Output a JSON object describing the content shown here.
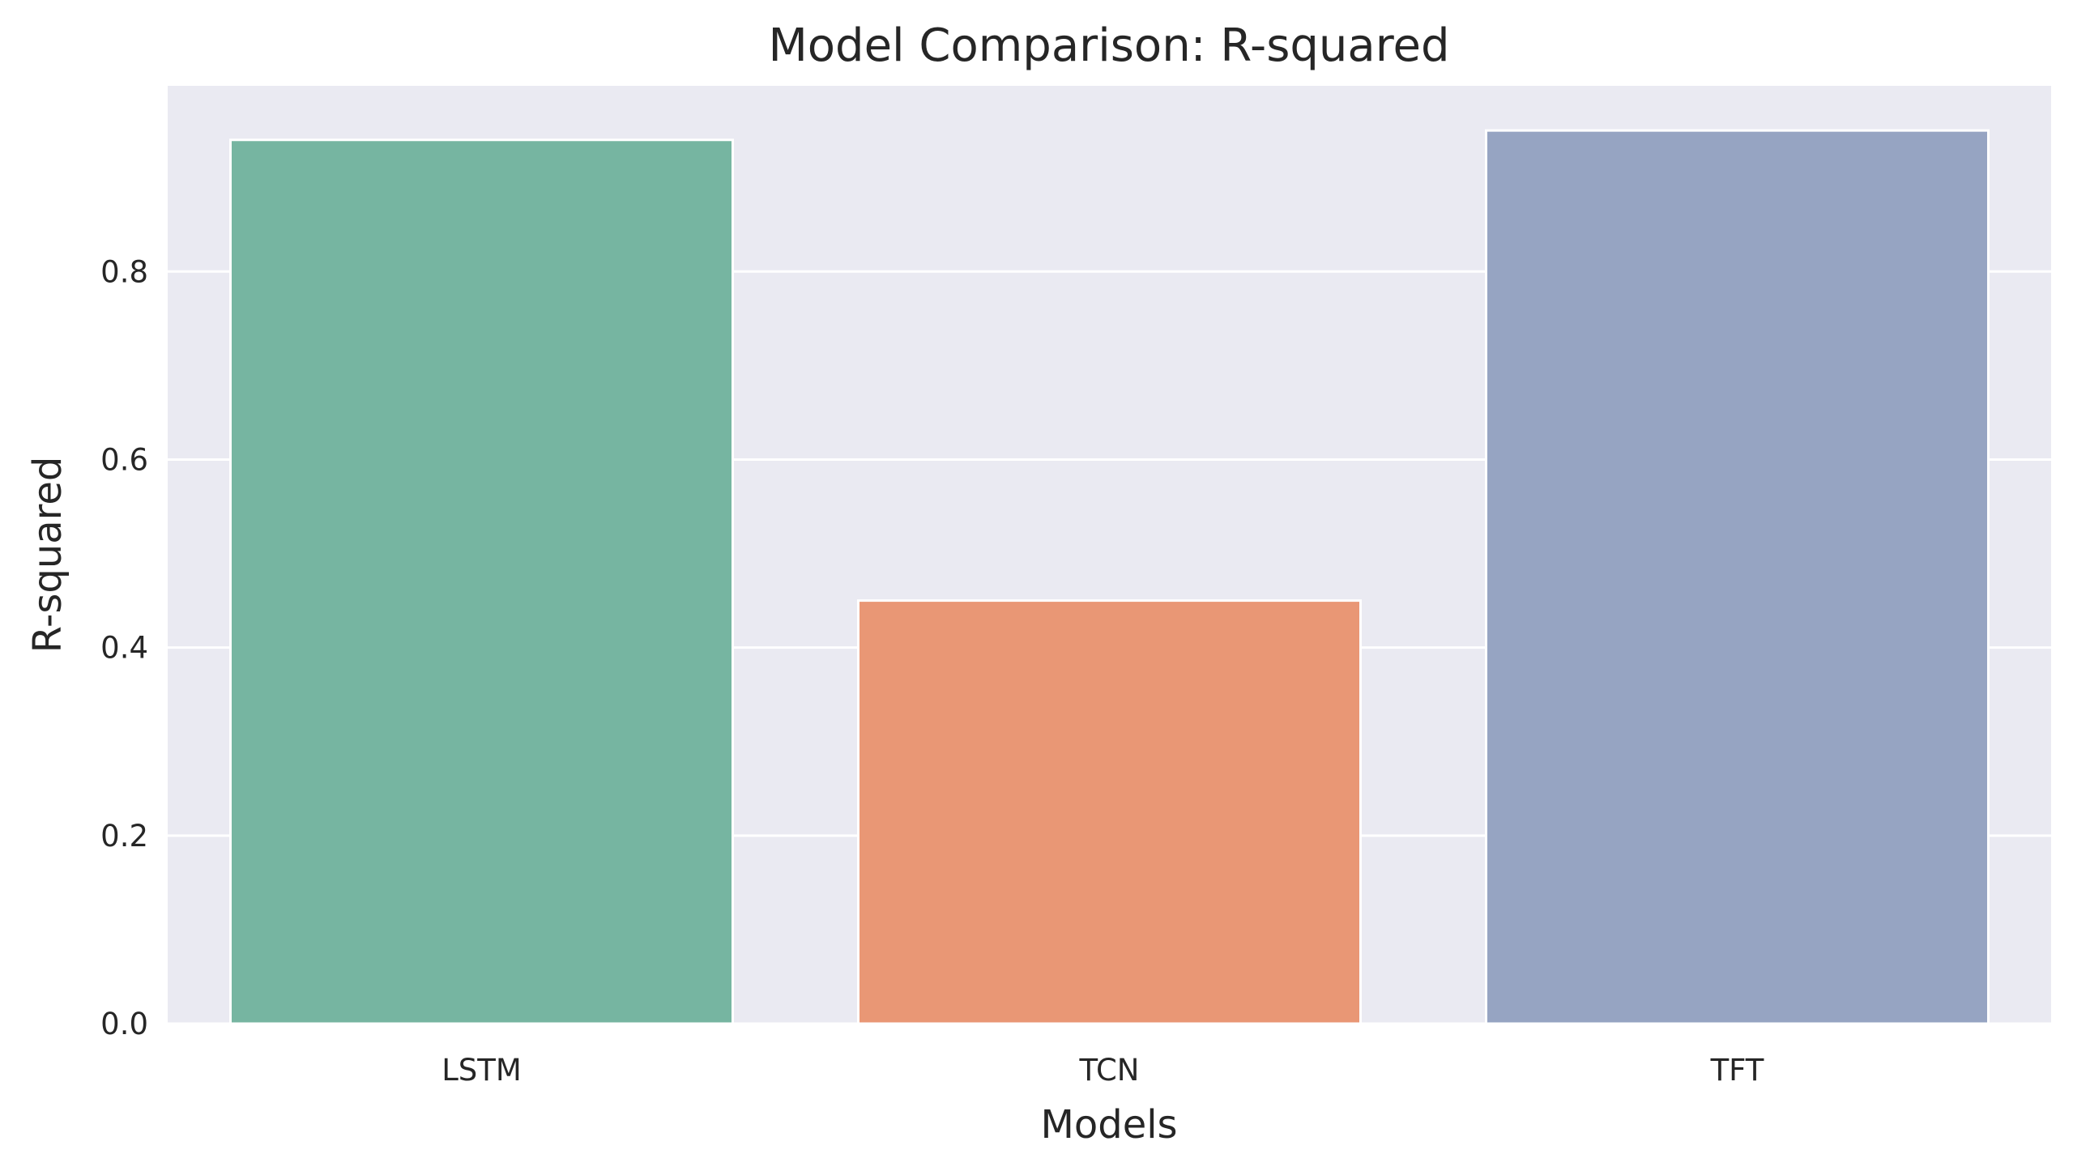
{
  "chart_data": {
    "type": "bar",
    "title": "Model Comparison: R-squared",
    "xlabel": "Models",
    "ylabel": "R-squared",
    "categories": [
      "LSTM",
      "TCN",
      "TFT"
    ],
    "values": [
      0.94,
      0.45,
      0.95
    ],
    "colors": [
      "#76b5a1",
      "#e99775",
      "#96a4c2"
    ],
    "yticks": [
      0.0,
      0.2,
      0.4,
      0.6,
      0.8
    ],
    "ytick_labels": [
      "0.0",
      "0.2",
      "0.4",
      "0.6",
      "0.8"
    ],
    "ylim": [
      0,
      0.9975
    ],
    "grid": true,
    "legend": "none",
    "background_color": "#eaeaf2",
    "grid_color": "#ffffff"
  }
}
